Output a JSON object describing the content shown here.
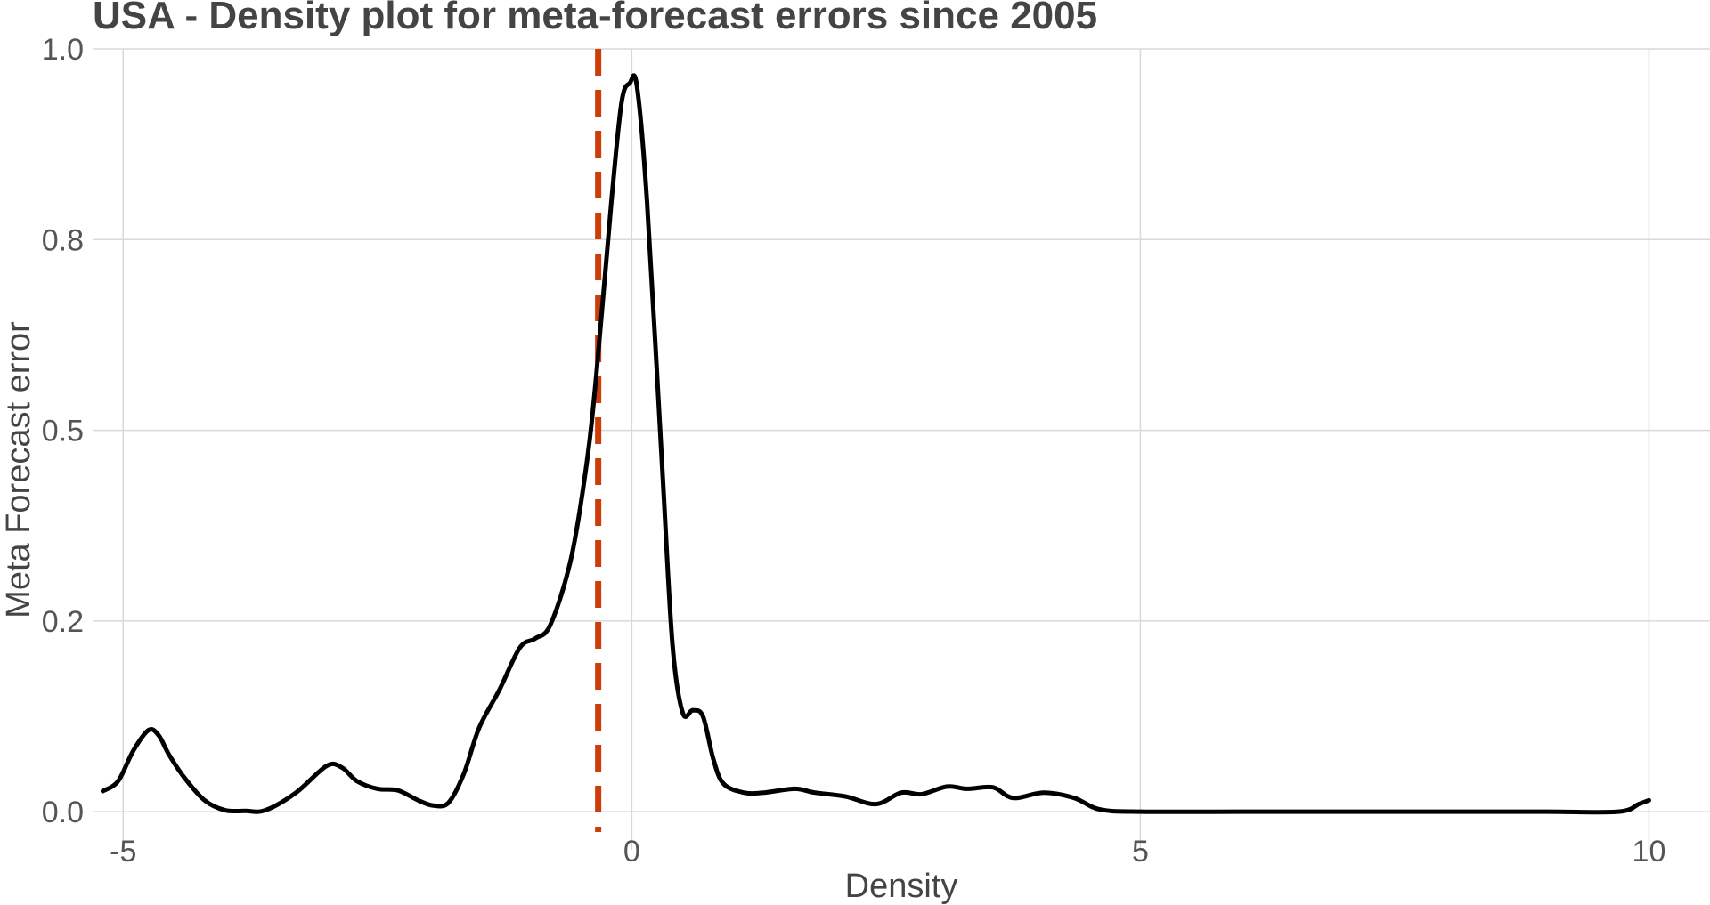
{
  "chart_data": {
    "type": "line",
    "title": "USA - Density plot for meta-forecast errors since 2005",
    "xlabel": "Density",
    "ylabel": "Meta Forecast error",
    "xlim": [
      -5.3,
      10.6
    ],
    "ylim": [
      -0.05,
      1.0
    ],
    "x_ticks": [
      {
        "value": -5,
        "label": "-5"
      },
      {
        "value": 0,
        "label": "0"
      },
      {
        "value": 5,
        "label": "5"
      },
      {
        "value": 10,
        "label": "10"
      }
    ],
    "y_ticks": [
      {
        "value": 0,
        "label": "0.0"
      },
      {
        "value": 0.25,
        "label": "0.2"
      },
      {
        "value": 0.5,
        "label": "0.5"
      },
      {
        "value": 0.75,
        "label": "0.8"
      },
      {
        "value": 1.0,
        "label": "1.0"
      }
    ],
    "grid": true,
    "reference_line": {
      "x": -0.33,
      "color": "#CC3D0A",
      "style": "dashed"
    },
    "series": [
      {
        "color": "#000000",
        "x": [
          -5.2,
          -5.05,
          -4.9,
          -4.75,
          -4.65,
          -4.55,
          -4.4,
          -4.2,
          -4.0,
          -3.8,
          -3.6,
          -3.3,
          -3.0,
          -2.85,
          -2.7,
          -2.5,
          -2.3,
          -2.1,
          -1.95,
          -1.8,
          -1.65,
          -1.5,
          -1.3,
          -1.1,
          -0.95,
          -0.8,
          -0.6,
          -0.45,
          -0.35,
          -0.2,
          -0.1,
          -0.02,
          0.05,
          0.15,
          0.3,
          0.4,
          0.5,
          0.6,
          0.7,
          0.8,
          0.9,
          1.1,
          1.3,
          1.6,
          1.8,
          2.1,
          2.4,
          2.65,
          2.85,
          3.1,
          3.3,
          3.55,
          3.75,
          4.05,
          4.35,
          4.6,
          5.0,
          6.0,
          7.0,
          8.0,
          9.0,
          9.7,
          9.9,
          10.0
        ],
        "y": [
          0.027,
          0.04,
          0.08,
          0.107,
          0.1,
          0.075,
          0.045,
          0.015,
          0.002,
          0.001,
          0.002,
          0.025,
          0.06,
          0.058,
          0.04,
          0.03,
          0.028,
          0.015,
          0.008,
          0.012,
          0.05,
          0.11,
          0.16,
          0.215,
          0.227,
          0.245,
          0.33,
          0.45,
          0.57,
          0.8,
          0.93,
          0.955,
          0.952,
          0.8,
          0.45,
          0.22,
          0.13,
          0.133,
          0.125,
          0.07,
          0.037,
          0.025,
          0.025,
          0.03,
          0.025,
          0.02,
          0.01,
          0.025,
          0.023,
          0.033,
          0.03,
          0.032,
          0.018,
          0.025,
          0.018,
          0.003,
          0.0,
          0.0,
          0.0,
          0.0,
          0.0,
          0.0,
          0.01,
          0.015
        ]
      }
    ]
  }
}
